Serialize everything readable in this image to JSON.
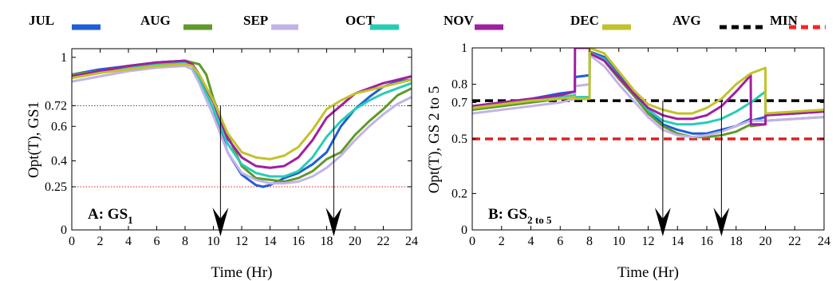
{
  "chart_data": [
    {
      "type": "line",
      "panel_label": "A: GS",
      "panel_label_sub": "1",
      "xlabel": "Time (Hr)",
      "ylabel": "Opt(T), GS1",
      "xlim": [
        0,
        24
      ],
      "ylim": [
        0,
        1.05
      ],
      "xticks": [
        0,
        2,
        4,
        6,
        8,
        10,
        12,
        14,
        16,
        18,
        20,
        22,
        24
      ],
      "yticks": [
        0,
        0.25,
        0.4,
        0.6,
        0.72,
        1
      ],
      "ytick_labels": [
        "0",
        "0.25",
        "0.4",
        "0.6",
        "0.72",
        "1"
      ],
      "reference_lines": [
        {
          "name": "AVG",
          "y": 0.72,
          "color": "#444444",
          "style": "dotted"
        },
        {
          "name": "MIN",
          "y": 0.25,
          "color": "#e02020",
          "style": "dotted"
        }
      ],
      "arrows_at_x": [
        10.5,
        18.5
      ],
      "series": [
        {
          "name": "JUL",
          "color": "#1f5fd6",
          "x": [
            0,
            2,
            4,
            6,
            8,
            8.5,
            9,
            10,
            11,
            12,
            13,
            13.5,
            14,
            15,
            16,
            17,
            18,
            19,
            20,
            21,
            22,
            23,
            24
          ],
          "y": [
            0.9,
            0.93,
            0.95,
            0.97,
            0.98,
            0.96,
            0.88,
            0.7,
            0.45,
            0.32,
            0.26,
            0.25,
            0.26,
            0.3,
            0.33,
            0.38,
            0.45,
            0.6,
            0.7,
            0.77,
            0.83,
            0.86,
            0.87
          ]
        },
        {
          "name": "AUG",
          "color": "#5f9a2a",
          "x": [
            0,
            2,
            4,
            6,
            8,
            9,
            9.5,
            10,
            11,
            12,
            13,
            14,
            15,
            16,
            17,
            18,
            19,
            20,
            21,
            22,
            23,
            24
          ],
          "y": [
            0.9,
            0.92,
            0.95,
            0.97,
            0.98,
            0.96,
            0.9,
            0.76,
            0.55,
            0.37,
            0.3,
            0.29,
            0.28,
            0.3,
            0.34,
            0.41,
            0.45,
            0.55,
            0.63,
            0.7,
            0.78,
            0.82
          ]
        },
        {
          "name": "SEP",
          "color": "#c3b2e8",
          "x": [
            0,
            2,
            4,
            6,
            8,
            8.5,
            9,
            10,
            11,
            12,
            13,
            14,
            15,
            16,
            17,
            18,
            19,
            20,
            21,
            22,
            23,
            24
          ],
          "y": [
            0.86,
            0.89,
            0.92,
            0.94,
            0.95,
            0.93,
            0.85,
            0.66,
            0.45,
            0.33,
            0.29,
            0.27,
            0.27,
            0.28,
            0.31,
            0.36,
            0.43,
            0.52,
            0.6,
            0.67,
            0.73,
            0.77
          ]
        },
        {
          "name": "OCT",
          "color": "#28ccb4",
          "x": [
            0,
            2,
            4,
            6,
            8,
            8.5,
            9,
            10,
            11,
            12,
            13,
            14,
            15,
            16,
            17,
            18,
            19,
            20,
            21,
            22,
            23,
            24
          ],
          "y": [
            0.88,
            0.91,
            0.94,
            0.96,
            0.97,
            0.95,
            0.88,
            0.7,
            0.5,
            0.38,
            0.33,
            0.31,
            0.31,
            0.34,
            0.42,
            0.54,
            0.63,
            0.7,
            0.75,
            0.79,
            0.82,
            0.85
          ]
        },
        {
          "name": "NOV",
          "color": "#a020a0",
          "x": [
            0,
            2,
            4,
            6,
            8,
            8.5,
            9,
            10,
            11,
            12,
            13,
            14,
            15,
            16,
            17,
            18,
            19,
            20,
            21,
            22,
            23,
            24
          ],
          "y": [
            0.89,
            0.92,
            0.95,
            0.97,
            0.98,
            0.96,
            0.9,
            0.74,
            0.53,
            0.42,
            0.37,
            0.36,
            0.37,
            0.42,
            0.52,
            0.65,
            0.72,
            0.79,
            0.82,
            0.85,
            0.87,
            0.89
          ]
        },
        {
          "name": "DEC",
          "color": "#c2c22a",
          "x": [
            0,
            2,
            4,
            6,
            8,
            8.5,
            9,
            10,
            11,
            12,
            13,
            14,
            15,
            16,
            17,
            18,
            19,
            20,
            21,
            22,
            23,
            24
          ],
          "y": [
            0.88,
            0.91,
            0.93,
            0.95,
            0.96,
            0.95,
            0.9,
            0.75,
            0.56,
            0.45,
            0.42,
            0.41,
            0.43,
            0.48,
            0.58,
            0.7,
            0.75,
            0.79,
            0.81,
            0.83,
            0.85,
            0.87
          ]
        }
      ]
    },
    {
      "type": "line",
      "panel_label": "B: GS",
      "panel_label_sub": "2 to 5",
      "xlabel": "Time (Hr)",
      "ylabel": "Opt(T), GS 2 to 5",
      "xlim": [
        0,
        24
      ],
      "ylim": [
        0,
        1
      ],
      "xticks": [
        0,
        2,
        4,
        6,
        8,
        10,
        12,
        14,
        16,
        18,
        20,
        22,
        24
      ],
      "yticks": [
        0,
        0.2,
        0.5,
        0.7,
        0.8,
        1
      ],
      "ytick_labels": [
        "0",
        "0.2",
        "0.5",
        "0.7",
        "0.8",
        "1"
      ],
      "reference_lines": [
        {
          "name": "AVG",
          "y": 0.71,
          "color": "#000000",
          "style": "dashed"
        },
        {
          "name": "MIN",
          "y": 0.5,
          "color": "#e02020",
          "style": "dashed"
        }
      ],
      "arrows_at_x": [
        13,
        17
      ],
      "series": [
        {
          "name": "JUL",
          "color": "#1f5fd6",
          "x": [
            0,
            2,
            4,
            6,
            7,
            7.01,
            8,
            8.01,
            9,
            10,
            11,
            12,
            13,
            14,
            15,
            16,
            17,
            18,
            19,
            19.01,
            20,
            20.01,
            22,
            24
          ],
          "y": [
            0.68,
            0.7,
            0.72,
            0.75,
            0.76,
            0.84,
            0.85,
            0.98,
            0.95,
            0.85,
            0.76,
            0.66,
            0.58,
            0.55,
            0.53,
            0.53,
            0.55,
            0.57,
            0.61,
            0.6,
            0.62,
            0.63,
            0.64,
            0.65
          ]
        },
        {
          "name": "AUG",
          "color": "#5f9a2a",
          "x": [
            0,
            2,
            4,
            6,
            7,
            7.01,
            8,
            8.01,
            9,
            10,
            11,
            12,
            13,
            14,
            15,
            16,
            17,
            18,
            19,
            19.01,
            20,
            20.01,
            22,
            24
          ],
          "y": [
            0.66,
            0.68,
            0.7,
            0.72,
            0.73,
            0.72,
            0.72,
            0.98,
            0.93,
            0.83,
            0.74,
            0.64,
            0.57,
            0.53,
            0.51,
            0.51,
            0.52,
            0.54,
            0.58,
            0.57,
            0.58,
            0.6,
            0.61,
            0.62
          ]
        },
        {
          "name": "SEP",
          "color": "#c3b2e8",
          "x": [
            0,
            2,
            4,
            6,
            7,
            7.01,
            8,
            8.01,
            9,
            10,
            11,
            12,
            13,
            14,
            15,
            16,
            17,
            18,
            19,
            19.01,
            20,
            20.01,
            22,
            24
          ],
          "y": [
            0.64,
            0.66,
            0.68,
            0.7,
            0.72,
            0.79,
            0.8,
            0.96,
            0.9,
            0.8,
            0.71,
            0.62,
            0.55,
            0.52,
            0.51,
            0.52,
            0.54,
            0.57,
            0.6,
            0.6,
            0.6,
            0.6,
            0.61,
            0.62
          ]
        },
        {
          "name": "OCT",
          "color": "#28ccb4",
          "x": [
            0,
            2,
            4,
            6,
            7,
            7.01,
            8,
            8.01,
            9,
            10,
            11,
            12,
            13,
            14,
            15,
            16,
            17,
            18,
            19,
            19.01,
            20,
            20.01,
            22,
            24
          ],
          "y": [
            0.67,
            0.69,
            0.71,
            0.73,
            0.74,
            0.73,
            0.73,
            0.97,
            0.94,
            0.84,
            0.75,
            0.66,
            0.6,
            0.58,
            0.58,
            0.59,
            0.61,
            0.65,
            0.7,
            0.7,
            0.76,
            0.63,
            0.64,
            0.65
          ]
        },
        {
          "name": "NOV",
          "color": "#a020a0",
          "x": [
            0,
            2,
            4,
            6,
            7,
            7.01,
            8,
            8.01,
            9,
            10,
            11,
            12,
            13,
            14,
            15,
            16,
            17,
            18,
            19,
            19.01,
            20,
            20.01,
            22,
            24
          ],
          "y": [
            0.68,
            0.7,
            0.72,
            0.74,
            0.76,
            1.0,
            1.0,
            0.97,
            0.93,
            0.84,
            0.75,
            0.67,
            0.63,
            0.61,
            0.61,
            0.63,
            0.68,
            0.76,
            0.85,
            0.58,
            0.58,
            0.63,
            0.64,
            0.65
          ]
        },
        {
          "name": "DEC",
          "color": "#c2c22a",
          "x": [
            0,
            2,
            4,
            6,
            7,
            7.01,
            8,
            8.01,
            9,
            10,
            11,
            12,
            13,
            14,
            15,
            16,
            17,
            18,
            19,
            19.01,
            20,
            20.01,
            22,
            24
          ],
          "y": [
            0.67,
            0.69,
            0.71,
            0.72,
            0.73,
            0.72,
            0.72,
            1.0,
            0.97,
            0.87,
            0.77,
            0.69,
            0.66,
            0.64,
            0.64,
            0.67,
            0.72,
            0.8,
            0.86,
            0.86,
            0.89,
            0.64,
            0.65,
            0.66
          ]
        }
      ]
    }
  ],
  "legend": [
    {
      "label": "JUL",
      "color": "#1f5fd6",
      "style": "solid"
    },
    {
      "label": "AUG",
      "color": "#5f9a2a",
      "style": "solid"
    },
    {
      "label": "SEP",
      "color": "#c3b2e8",
      "style": "solid"
    },
    {
      "label": "OCT",
      "color": "#28ccb4",
      "style": "solid"
    },
    {
      "label": "NOV",
      "color": "#a020a0",
      "style": "solid"
    },
    {
      "label": "DEC",
      "color": "#c2c22a",
      "style": "solid"
    },
    {
      "label": "AVG",
      "color": "#000000",
      "style": "dashed"
    },
    {
      "label": "MIN",
      "color": "#ff2020",
      "style": "dashed"
    }
  ]
}
